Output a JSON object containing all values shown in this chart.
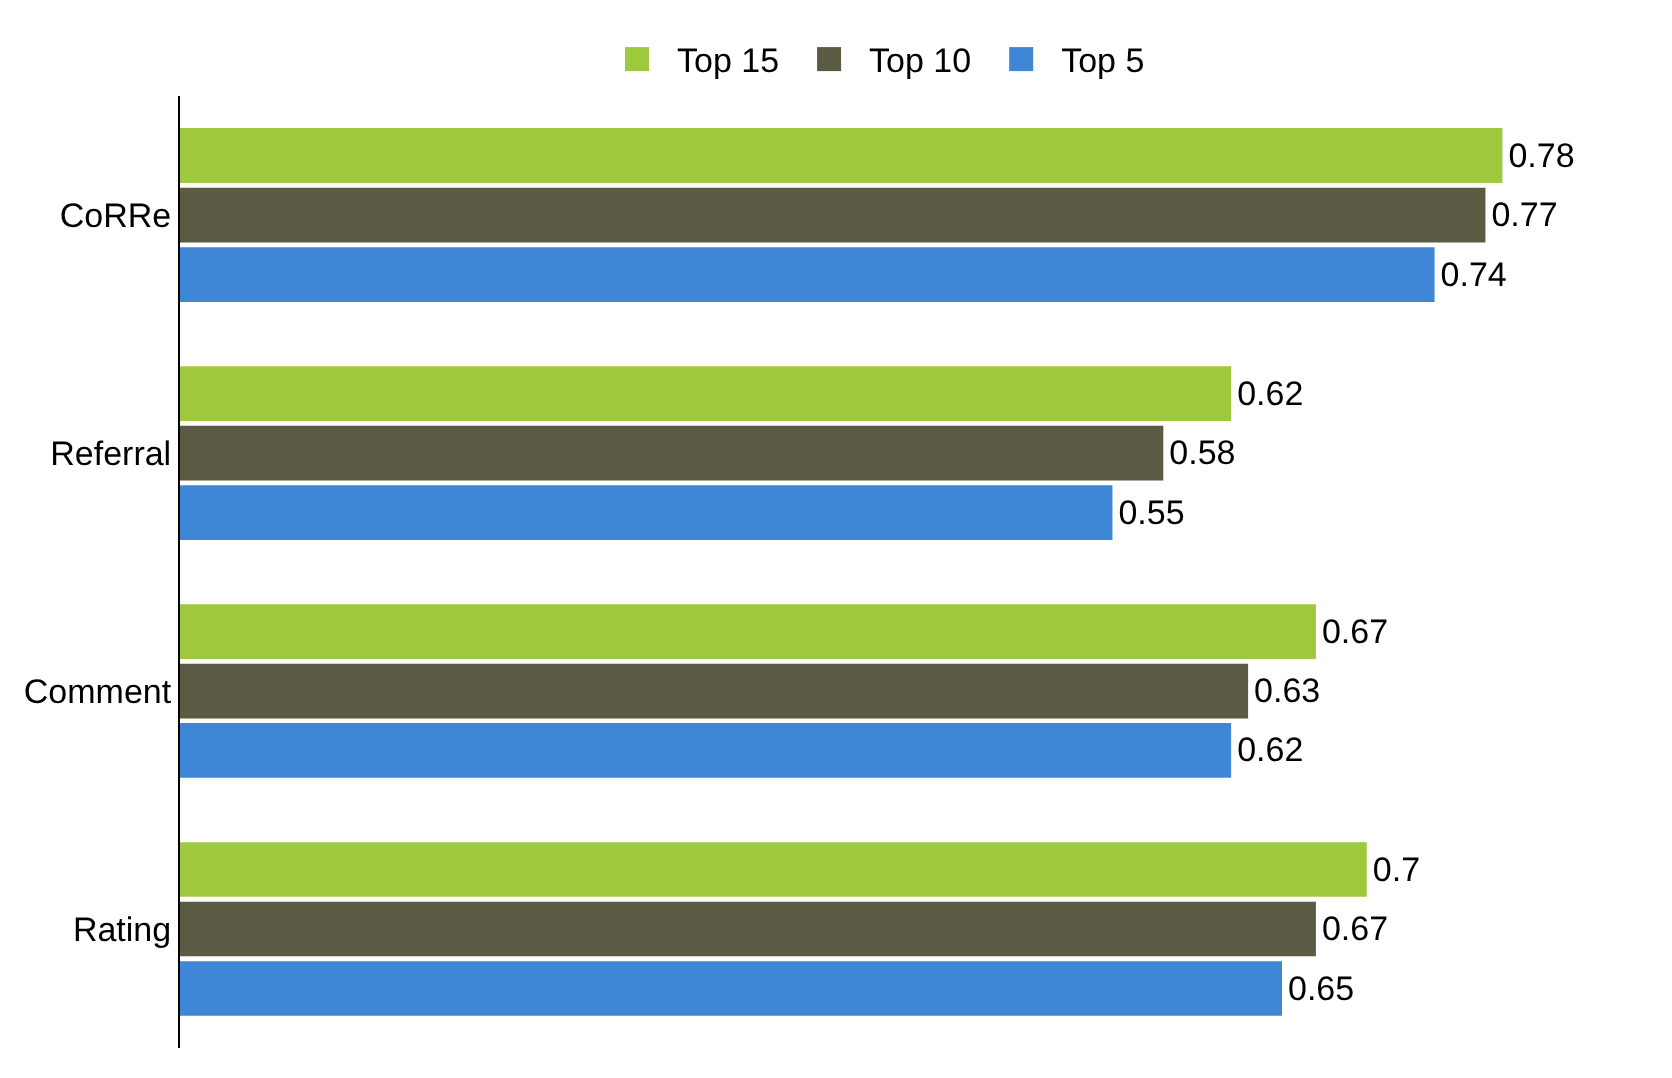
{
  "chart_data": {
    "type": "bar",
    "orientation": "horizontal",
    "categories": [
      "CoRRe",
      "Referral",
      "Comment",
      "Rating"
    ],
    "series": [
      {
        "name": "Top 15",
        "color": "#9fc93c",
        "values": [
          0.78,
          0.62,
          0.67,
          0.7
        ]
      },
      {
        "name": "Top 10",
        "color": "#5b5a42",
        "values": [
          0.77,
          0.58,
          0.63,
          0.67
        ]
      },
      {
        "name": "Top 5",
        "color": "#3f86d6",
        "values": [
          0.74,
          0.55,
          0.62,
          0.65
        ]
      }
    ],
    "tick_labels": "y",
    "data_labels": true,
    "legend": "top"
  }
}
